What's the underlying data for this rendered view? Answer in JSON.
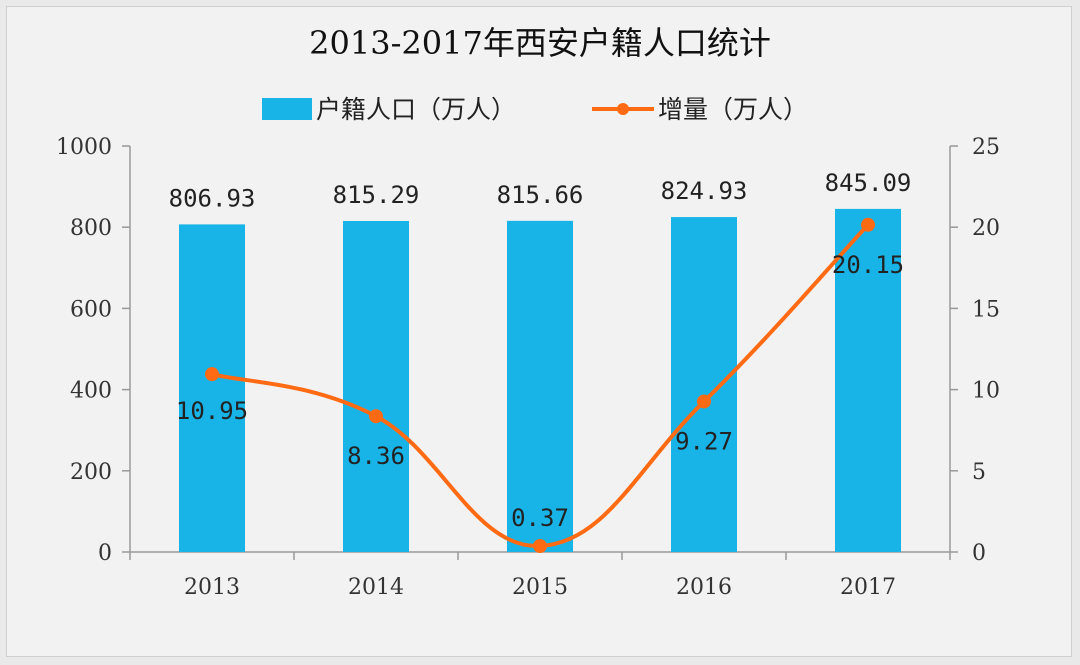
{
  "chart_data": {
    "type": "bar",
    "title": "2013-2017年西安户籍人口统计",
    "categories": [
      "2013",
      "2014",
      "2015",
      "2016",
      "2017"
    ],
    "series": [
      {
        "name": "户籍人口（万人）",
        "type": "bar",
        "axis": "left",
        "values": [
          806.93,
          815.29,
          815.66,
          824.93,
          845.09
        ],
        "color": "#18b4e8"
      },
      {
        "name": "增量（万人）",
        "type": "line",
        "axis": "right",
        "values": [
          10.95,
          8.36,
          0.37,
          9.27,
          20.15
        ],
        "color": "#ff6a13"
      }
    ],
    "bar_labels": [
      "806.93",
      "815.29",
      "815.66",
      "824.93",
      "845.09"
    ],
    "line_labels": [
      "10.95",
      "8.36",
      "0.37",
      "9.27",
      "20.15"
    ],
    "y_left": {
      "min": 0,
      "max": 1000,
      "ticks": [
        "0",
        "200",
        "400",
        "600",
        "800",
        "1000"
      ]
    },
    "y_right": {
      "min": 0,
      "max": 25,
      "ticks": [
        "0",
        "5",
        "10",
        "15",
        "20",
        "25"
      ]
    },
    "legend_position": "top",
    "grid": false
  }
}
